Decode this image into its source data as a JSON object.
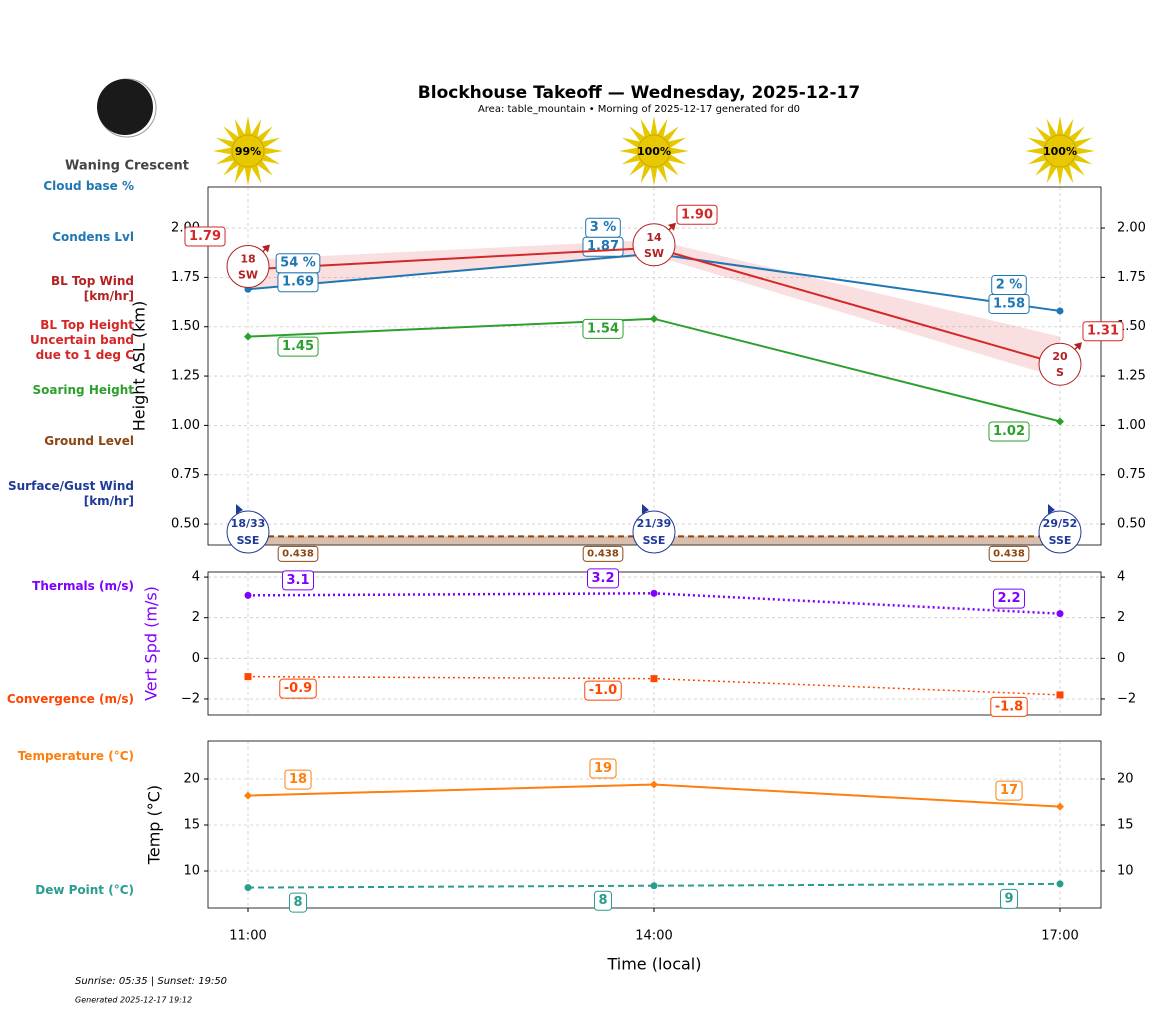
{
  "title": "Blockhouse Takeoff — Wednesday, 2025-12-17",
  "subtitle": "Area: table_mountain • Morning of 2025-12-17 generated for d0",
  "moon_phase": "Waning Crescent",
  "sun": {
    "values": [
      99,
      100,
      100
    ],
    "value_labels": [
      "99%",
      "100%",
      "100%"
    ]
  },
  "sunrise_sunset": "Sunrise: 05:35 | Sunset: 19:50",
  "generated": "Generated 2025-12-17 19:12",
  "chart_data": [
    {
      "type": "line",
      "y_label": "Height ASL (km)",
      "ylim": [
        0.394,
        2.208
      ],
      "yticks": [
        {
          "value": 0.5,
          "label": "0.50"
        },
        {
          "value": 0.75,
          "label": "0.75"
        },
        {
          "value": 1.0,
          "label": "1.00"
        },
        {
          "value": 1.25,
          "label": "1.25"
        },
        {
          "value": 1.5,
          "label": "1.50"
        },
        {
          "value": 1.75,
          "label": "1.75"
        },
        {
          "value": 2.0,
          "label": "2.00"
        }
      ],
      "grid": true,
      "series": [
        {
          "name": "Condens Lvl",
          "color": "#1f77b4",
          "values": [
            1.69,
            1.87,
            1.58
          ],
          "marker": "o",
          "linestyle": "solid"
        },
        {
          "name": "BL Top Height",
          "color": "#d62728",
          "values": [
            1.79,
            1.9,
            1.31
          ],
          "value_labels": [
            "1.79",
            "1.90",
            "1.31"
          ],
          "marker": "none",
          "linestyle": "solid"
        },
        {
          "name": "Soaring Height",
          "color": "#2ca02c",
          "values": [
            1.45,
            1.54,
            1.02
          ],
          "marker": "D",
          "linestyle": "solid"
        },
        {
          "name": "Ground Level",
          "color": "#8b4513",
          "values": [
            0.438,
            0.438,
            0.438
          ],
          "marker": "none",
          "linestyle": "dashed"
        }
      ],
      "cloud_base": {
        "name": "Cloud base %",
        "color": "#1f77b4",
        "values": [
          54,
          3,
          2
        ],
        "value_labels": [
          "54 %",
          "3 %",
          "2 %"
        ]
      },
      "band": {
        "name": "Uncertain band\ndue to 1 deg C",
        "color": "#d62728",
        "low": [
          1.69,
          1.86,
          1.24
        ],
        "high": [
          1.84,
          1.94,
          1.45
        ]
      },
      "bl_wind": {
        "name": "BL Top Wind\n[km/hr]",
        "color": "#b22222",
        "values": [
          18,
          14,
          20
        ],
        "directions": [
          "SW",
          "SW",
          "S"
        ]
      },
      "surface_wind": {
        "name": "Surface/Gust Wind\n[km/hr]",
        "color": "#1f3a9a",
        "labels": [
          "18/33",
          "21/39",
          "29/52"
        ],
        "directions": [
          "SSE",
          "SSE",
          "SSE"
        ]
      }
    },
    {
      "type": "line",
      "y_label": "Vert Spd (m/s)",
      "y_label_color": "#7f00ff",
      "ylim": [
        -2.79,
        4.25
      ],
      "yticks": [
        {
          "value": -2,
          "label": "−2"
        },
        0,
        2,
        4
      ],
      "grid": true,
      "series": [
        {
          "name": "Thermals (m/s)",
          "color": "#7f00ff",
          "values": [
            3.1,
            3.2,
            2.2
          ],
          "marker": "o",
          "linestyle": "dotted"
        },
        {
          "name": "Convergence (m/s)",
          "color": "#ff4500",
          "values": [
            -0.9,
            -1.0,
            -1.8
          ],
          "value_labels": [
            "-0.9",
            "-1.0",
            "-1.8"
          ],
          "marker": "s",
          "linestyle": "dotted"
        }
      ]
    },
    {
      "type": "line",
      "y_label": "Temp (°C)",
      "x_label": "Time (local)",
      "categories": [
        "11:00",
        "14:00",
        "17:00"
      ],
      "ylim": [
        5.98,
        24.13
      ],
      "yticks": [
        10,
        15,
        20
      ],
      "grid": true,
      "series": [
        {
          "name": "Temperature (°C)",
          "color": "#ff7f0e",
          "values": [
            18.2,
            19.4,
            17.0
          ],
          "value_labels": [
            "18",
            "19",
            "17"
          ],
          "marker": "D",
          "linestyle": "solid"
        },
        {
          "name": "Dew Point (°C)",
          "color": "#2a9d8f",
          "values": [
            8.2,
            8.4,
            8.6
          ],
          "value_labels": [
            "8",
            "8",
            "9"
          ],
          "marker": "o",
          "linestyle": "dashed"
        }
      ]
    }
  ]
}
